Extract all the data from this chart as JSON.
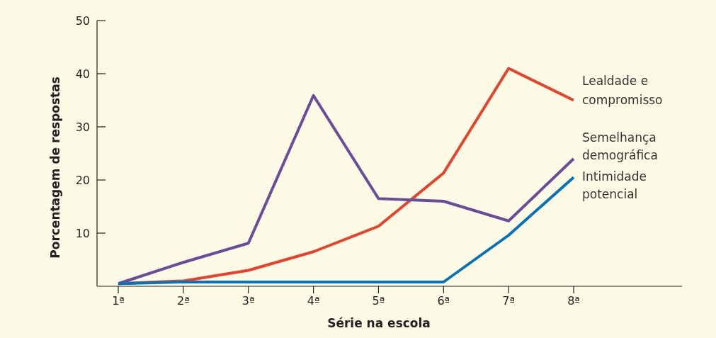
{
  "chart_data": {
    "type": "line",
    "xlabel": "Série na escola",
    "ylabel": "Porcentagem de respostas",
    "categories": [
      "1ª",
      "2ª",
      "3ª",
      "4ª",
      "5ª",
      "6ª",
      "7ª",
      "8ª"
    ],
    "series": [
      {
        "name": "Lealdade e compromisso",
        "color": "#e8412c",
        "values": [
          0.5,
          1,
          3,
          6.5,
          11.3,
          21.3,
          41,
          35
        ]
      },
      {
        "name": "Semelhança demográfica",
        "color": "#6b4c9a",
        "values": [
          0.5,
          4.5,
          8.1,
          35.9,
          16.5,
          16,
          12.3,
          24
        ]
      },
      {
        "name": "Intimidade potencial",
        "color": "#0a72b8",
        "values": [
          0.5,
          0.8,
          0.8,
          0.8,
          0.8,
          0.8,
          9.6,
          20.5
        ]
      }
    ],
    "ylim": [
      0,
      50
    ],
    "yticks": [
      10,
      20,
      30,
      40,
      50
    ],
    "grid": false,
    "marker": "none",
    "line_style": "solid"
  }
}
